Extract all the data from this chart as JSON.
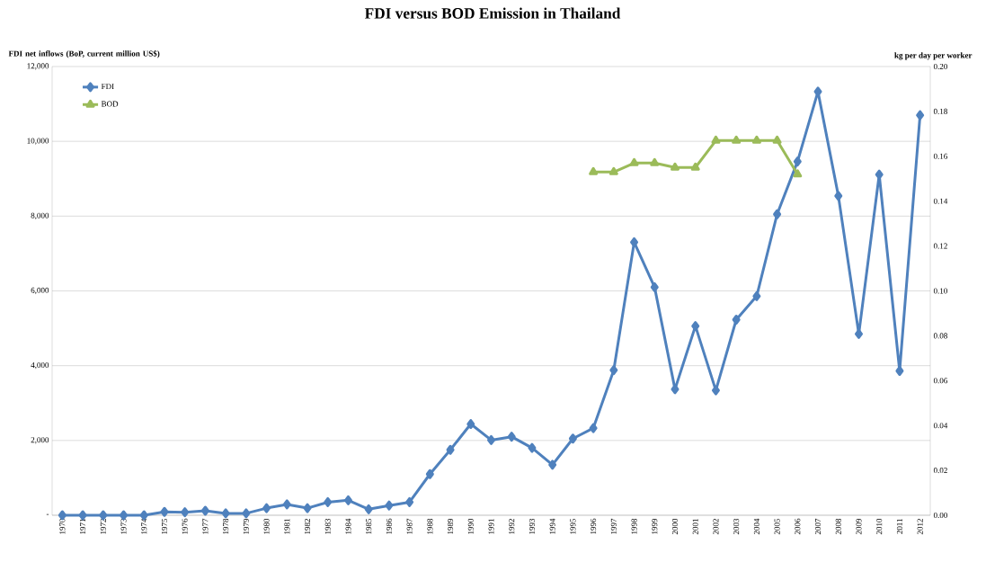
{
  "chart_data": {
    "type": "line",
    "title": "FDI versus BOD Emission in Thailand",
    "ylabel": "FDI net inflows (BoP, current million US$)",
    "y2label": "kg per day per worker",
    "categories": [
      "1970",
      "1971",
      "1972",
      "1973",
      "1974",
      "1975",
      "1976",
      "1977",
      "1978",
      "1979",
      "1980",
      "1981",
      "1982",
      "1983",
      "1984",
      "1985",
      "1986",
      "1987",
      "1988",
      "1989",
      "1990",
      "1991",
      "1992",
      "1993",
      "1994",
      "1995",
      "1996",
      "1997",
      "1998",
      "1999",
      "2000",
      "2001",
      "2002",
      "2003",
      "2004",
      "2005",
      "2006",
      "2007",
      "2008",
      "2009",
      "2010",
      "2011",
      "2012"
    ],
    "series": [
      {
        "name": "FDI",
        "color": "#4f81bd",
        "marker": "diamond",
        "values": [
          0,
          0,
          0,
          0,
          0,
          90,
          80,
          120,
          50,
          50,
          190,
          290,
          190,
          350,
          400,
          160,
          260,
          350,
          1100,
          1750,
          2440,
          2010,
          2100,
          1800,
          1350,
          2050,
          2330,
          3880,
          7300,
          6100,
          3370,
          5060,
          3340,
          5230,
          5860,
          8050,
          9460,
          11330,
          8540,
          4850,
          9110,
          3860,
          10700
        ]
      },
      {
        "name": "BOD",
        "color": "#9bbb59",
        "marker": "triangle",
        "axis": "y2",
        "values": [
          null,
          null,
          null,
          null,
          null,
          null,
          null,
          null,
          null,
          null,
          null,
          null,
          null,
          null,
          null,
          null,
          null,
          null,
          null,
          null,
          null,
          null,
          null,
          null,
          null,
          null,
          0.153,
          0.153,
          0.157,
          0.157,
          0.155,
          0.155,
          0.167,
          0.167,
          0.167,
          0.167,
          0.152,
          null,
          null,
          null,
          null,
          null,
          null
        ]
      }
    ],
    "ylim": [
      0,
      12000
    ],
    "yticks": [
      {
        "value": 0,
        "label": "-"
      },
      {
        "value": 2000,
        "label": "2,000"
      },
      {
        "value": 4000,
        "label": "4,000"
      },
      {
        "value": 6000,
        "label": "6,000"
      },
      {
        "value": 8000,
        "label": "8,000"
      },
      {
        "value": 10000,
        "label": "10,000"
      },
      {
        "value": 12000,
        "label": "12,000"
      }
    ],
    "y2lim": [
      0,
      0.2
    ],
    "y2ticks": [
      {
        "value": 0,
        "label": "0.00"
      },
      {
        "value": 0.02,
        "label": "0.02"
      },
      {
        "value": 0.04,
        "label": "0.04"
      },
      {
        "value": 0.06,
        "label": "0.06"
      },
      {
        "value": 0.08,
        "label": "0.08"
      },
      {
        "value": 0.1,
        "label": "0.10"
      },
      {
        "value": 0.12,
        "label": "0.12"
      },
      {
        "value": 0.14,
        "label": "0.14"
      },
      {
        "value": 0.16,
        "label": "0.16"
      },
      {
        "value": 0.18,
        "label": "0.18"
      },
      {
        "value": 0.2,
        "label": "0.20"
      }
    ],
    "grid": "y",
    "legend": "top left",
    "line_style": "solid"
  }
}
